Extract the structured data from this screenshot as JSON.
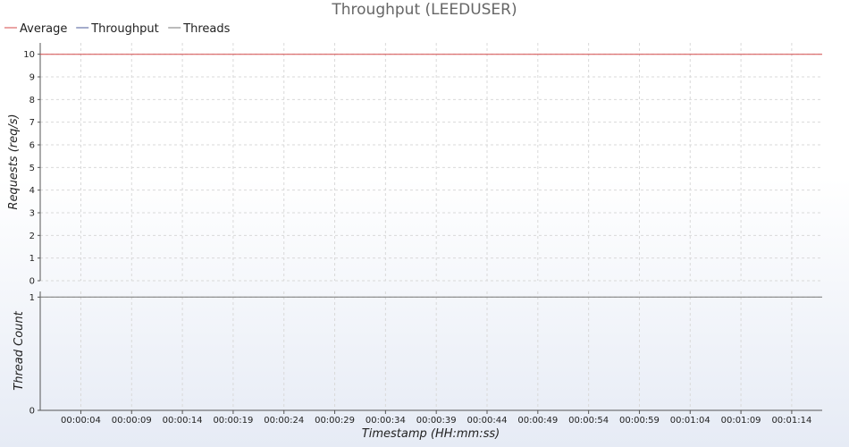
{
  "chart_data": {
    "type": "line",
    "title": "Throughput (LEEDUSER)",
    "xlabel": "Timestamp (HH:mm:ss)",
    "x_ticks": [
      "00:00:04",
      "00:00:09",
      "00:00:14",
      "00:00:19",
      "00:00:24",
      "00:00:29",
      "00:00:34",
      "00:00:39",
      "00:00:44",
      "00:00:49",
      "00:00:54",
      "00:00:59",
      "00:01:04",
      "00:01:09",
      "00:01:14"
    ],
    "x_range_seconds": [
      0,
      77
    ],
    "grid": true,
    "legend_placement": "top-left",
    "legend": [
      {
        "name": "Average",
        "color": "#d44a4a"
      },
      {
        "name": "Throughput",
        "color": "#4a5a9a"
      },
      {
        "name": "Threads",
        "color": "#777777"
      }
    ],
    "panels": [
      {
        "ylabel": "Requests (req/s)",
        "ylim": [
          0,
          10.5
        ],
        "y_ticks": [
          "0",
          "1",
          "2",
          "3",
          "4",
          "5",
          "6",
          "7",
          "8",
          "9",
          "10"
        ],
        "series": [
          {
            "name": "Average",
            "color": "#d44a4a",
            "x": [
              0,
              77
            ],
            "values": [
              10,
              10
            ]
          }
        ]
      },
      {
        "ylabel": "Thread Count",
        "ylim": [
          0,
          1.05
        ],
        "y_ticks": [
          "0",
          "1"
        ],
        "series": [
          {
            "name": "Threads",
            "color": "#777777",
            "x": [
              0,
              77
            ],
            "values": [
              1,
              1
            ]
          }
        ]
      }
    ]
  }
}
